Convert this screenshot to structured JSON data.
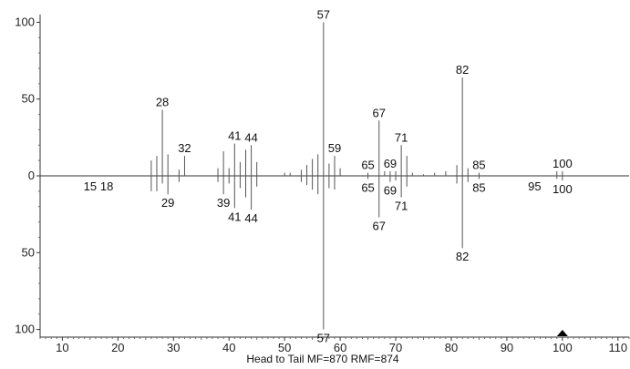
{
  "chart_data": {
    "type": "bar",
    "subtype": "head-to-tail mass spectrum comparison",
    "title": "",
    "xlabel": "Head to Tail MF=870 RMF=874",
    "ylabel": "",
    "xlim": [
      6,
      112
    ],
    "ylim": [
      -105,
      105
    ],
    "x_ticks": [
      10,
      20,
      30,
      40,
      50,
      60,
      70,
      80,
      90,
      100,
      110
    ],
    "y_ticks": [
      {
        "value": 100,
        "label": "100"
      },
      {
        "value": 50,
        "label": "50"
      },
      {
        "value": 0,
        "label": "0"
      },
      {
        "value": -50,
        "label": "50"
      },
      {
        "value": -100,
        "label": "100"
      }
    ],
    "marker": {
      "x": 100,
      "shape": "triangle"
    },
    "series": [
      {
        "peaks": [
          {
            "mz": 26,
            "intensity": 10
          },
          {
            "mz": 27,
            "intensity": 13
          },
          {
            "mz": 28,
            "intensity": 43,
            "label": "28"
          },
          {
            "mz": 29,
            "intensity": 14
          },
          {
            "mz": 31,
            "intensity": 4
          },
          {
            "mz": 32,
            "intensity": 13,
            "label": "32"
          },
          {
            "mz": 38,
            "intensity": 5
          },
          {
            "mz": 39,
            "intensity": 16
          },
          {
            "mz": 40,
            "intensity": 5
          },
          {
            "mz": 41,
            "intensity": 21,
            "label": "41"
          },
          {
            "mz": 42,
            "intensity": 9
          },
          {
            "mz": 43,
            "intensity": 17
          },
          {
            "mz": 44,
            "intensity": 20,
            "label": "44"
          },
          {
            "mz": 45,
            "intensity": 9
          },
          {
            "mz": 50,
            "intensity": 2
          },
          {
            "mz": 51,
            "intensity": 2
          },
          {
            "mz": 53,
            "intensity": 4
          },
          {
            "mz": 54,
            "intensity": 7
          },
          {
            "mz": 55,
            "intensity": 11
          },
          {
            "mz": 56,
            "intensity": 14
          },
          {
            "mz": 57,
            "intensity": 100,
            "label": "57"
          },
          {
            "mz": 58,
            "intensity": 8
          },
          {
            "mz": 59,
            "intensity": 13,
            "label": "59"
          },
          {
            "mz": 60,
            "intensity": 5
          },
          {
            "mz": 65,
            "intensity": 2,
            "label": "65"
          },
          {
            "mz": 67,
            "intensity": 36,
            "label": "67"
          },
          {
            "mz": 68,
            "intensity": 3
          },
          {
            "mz": 69,
            "intensity": 3,
            "label": "69"
          },
          {
            "mz": 70,
            "intensity": 3
          },
          {
            "mz": 71,
            "intensity": 20,
            "label": "71"
          },
          {
            "mz": 72,
            "intensity": 13
          },
          {
            "mz": 73,
            "intensity": 2
          },
          {
            "mz": 75,
            "intensity": 1
          },
          {
            "mz": 77,
            "intensity": 2
          },
          {
            "mz": 79,
            "intensity": 3
          },
          {
            "mz": 81,
            "intensity": 7
          },
          {
            "mz": 82,
            "intensity": 64,
            "label": "82"
          },
          {
            "mz": 83,
            "intensity": 5
          },
          {
            "mz": 85,
            "intensity": 2,
            "label": "85"
          },
          {
            "mz": 99,
            "intensity": 3
          },
          {
            "mz": 100,
            "intensity": 3,
            "label": "100"
          }
        ]
      },
      {
        "peaks": [
          {
            "mz": 15,
            "intensity": 0,
            "label": "15"
          },
          {
            "mz": 18,
            "intensity": 0,
            "label": "18"
          },
          {
            "mz": 26,
            "intensity": 10
          },
          {
            "mz": 27,
            "intensity": 10
          },
          {
            "mz": 28,
            "intensity": 5
          },
          {
            "mz": 29,
            "intensity": 12,
            "label": "29"
          },
          {
            "mz": 31,
            "intensity": 4
          },
          {
            "mz": 38,
            "intensity": 4
          },
          {
            "mz": 39,
            "intensity": 12,
            "label": "39"
          },
          {
            "mz": 40,
            "intensity": 5
          },
          {
            "mz": 41,
            "intensity": 21,
            "label": "41"
          },
          {
            "mz": 42,
            "intensity": 8
          },
          {
            "mz": 43,
            "intensity": 14
          },
          {
            "mz": 44,
            "intensity": 22,
            "label": "44"
          },
          {
            "mz": 45,
            "intensity": 7
          },
          {
            "mz": 53,
            "intensity": 4
          },
          {
            "mz": 54,
            "intensity": 6
          },
          {
            "mz": 55,
            "intensity": 9
          },
          {
            "mz": 56,
            "intensity": 12
          },
          {
            "mz": 57,
            "intensity": 100,
            "label": "57"
          },
          {
            "mz": 58,
            "intensity": 8
          },
          {
            "mz": 59,
            "intensity": 9
          },
          {
            "mz": 65,
            "intensity": 2,
            "label": "65"
          },
          {
            "mz": 67,
            "intensity": 27,
            "label": "67"
          },
          {
            "mz": 69,
            "intensity": 4,
            "label": "69"
          },
          {
            "mz": 70,
            "intensity": 3
          },
          {
            "mz": 71,
            "intensity": 14,
            "label": "71"
          },
          {
            "mz": 72,
            "intensity": 7
          },
          {
            "mz": 81,
            "intensity": 5
          },
          {
            "mz": 82,
            "intensity": 47,
            "label": "82"
          },
          {
            "mz": 83,
            "intensity": 4
          },
          {
            "mz": 85,
            "intensity": 2,
            "label": "85"
          },
          {
            "mz": 95,
            "intensity": 0,
            "label": "95"
          },
          {
            "mz": 99,
            "intensity": 2
          },
          {
            "mz": 100,
            "intensity": 3,
            "label": "100"
          }
        ]
      }
    ]
  }
}
